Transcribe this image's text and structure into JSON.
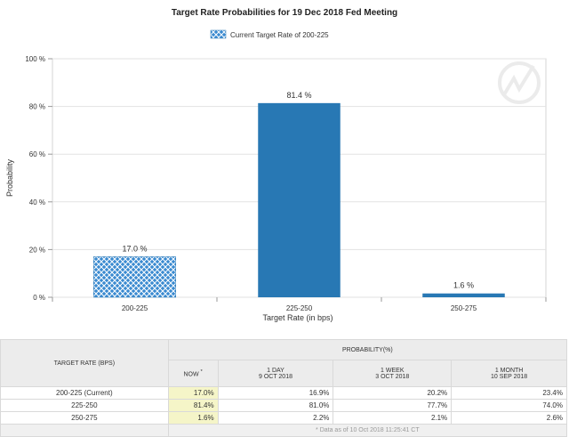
{
  "chart_data": {
    "type": "bar",
    "title": "Target Rate Probabilities for 19 Dec 2018 Fed Meeting",
    "legend_label": "Current Target Rate of 200-225",
    "legend_position": "top-center",
    "categories": [
      "200-225",
      "225-250",
      "250-275"
    ],
    "values": [
      17.0,
      81.4,
      1.6
    ],
    "data_labels": [
      "17.0 %",
      "81.4 %",
      "1.6 %"
    ],
    "xlabel": "Target Rate (in bps)",
    "ylabel": "Probability",
    "ylim": [
      0,
      100
    ],
    "yticks": [
      0,
      20,
      40,
      60,
      80,
      100
    ],
    "ytick_labels": [
      "0 %",
      "20 %",
      "40 %",
      "60 %",
      "80 %",
      "100 %"
    ],
    "grid": true,
    "colors": {
      "bar": "#2878b4",
      "current_bar": "#3a8ad0",
      "current_pattern_line": "#ffffff"
    }
  },
  "table": {
    "col_target": "TARGET RATE (BPS)",
    "col_probability": "PROBABILITY(%)",
    "col_now": "NOW",
    "col_now_mark": "*",
    "col_1day": "1 DAY",
    "col_1day_date": "9 OCT 2018",
    "col_1week": "1 WEEK",
    "col_1week_date": "3 OCT 2018",
    "col_1month": "1 MONTH",
    "col_1month_date": "10 SEP 2018",
    "rows": [
      {
        "rate": "200-225 (Current)",
        "now": "17.0%",
        "day": "16.9%",
        "week": "20.2%",
        "month": "23.4%"
      },
      {
        "rate": "225-250",
        "now": "81.4%",
        "day": "81.0%",
        "week": "77.7%",
        "month": "74.0%"
      },
      {
        "rate": "250-275",
        "now": "1.6%",
        "day": "2.2%",
        "week": "2.1%",
        "month": "2.6%"
      }
    ],
    "footnote": "* Data as of 10 Oct 2018 11:25:41 CT"
  }
}
